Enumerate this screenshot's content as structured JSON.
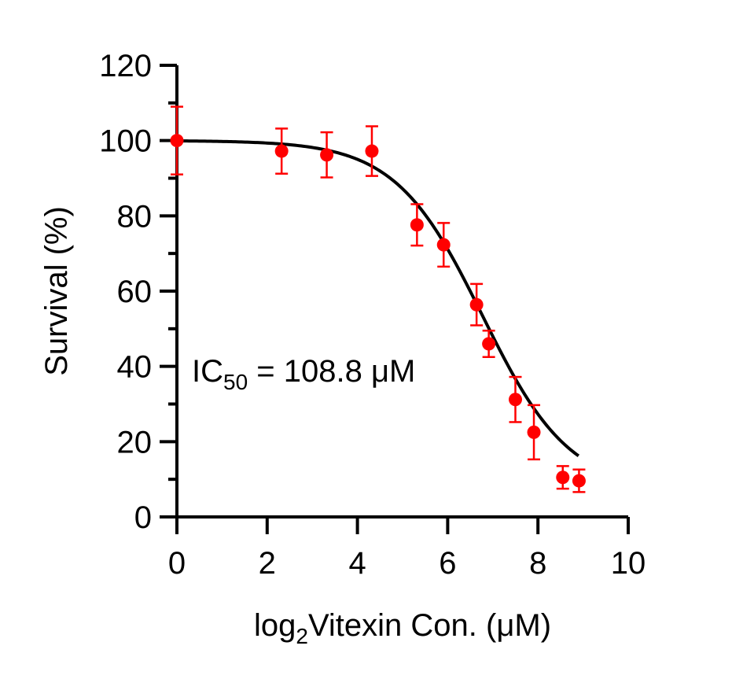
{
  "chart_data": {
    "type": "scatter",
    "title": "",
    "xlabel": {
      "prefix": "log",
      "subscript": "2",
      "suffix": "Vitexin Con. (μM)"
    },
    "ylabel": "Survival (%)",
    "xlim": [
      0,
      10
    ],
    "ylim": [
      0,
      120
    ],
    "x_ticks": [
      "0",
      "2",
      "4",
      "6",
      "8",
      "10"
    ],
    "y_ticks": [
      "0",
      "20",
      "40",
      "60",
      "80",
      "100",
      "120"
    ],
    "grid": false,
    "annotation": {
      "prefix": "IC",
      "subscript": "50",
      "suffix": " = 108.8 μM"
    },
    "colors": {
      "points": "#ff0000",
      "fit": "#000000",
      "axes": "#000000"
    },
    "series": [
      {
        "points": [
          {
            "x": 0.0,
            "y": 100.0,
            "err": 9.0
          },
          {
            "x": 2.32,
            "y": 97.2,
            "err": 6.0
          },
          {
            "x": 3.32,
            "y": 96.2,
            "err": 6.0
          },
          {
            "x": 4.32,
            "y": 97.2,
            "err": 6.6
          },
          {
            "x": 5.32,
            "y": 77.6,
            "err": 5.5
          },
          {
            "x": 5.91,
            "y": 72.3,
            "err": 5.8
          },
          {
            "x": 6.64,
            "y": 56.4,
            "err": 5.5
          },
          {
            "x": 6.91,
            "y": 46.0,
            "err": 3.5
          },
          {
            "x": 7.5,
            "y": 31.2,
            "err": 6.0
          },
          {
            "x": 7.91,
            "y": 22.5,
            "err": 7.2
          },
          {
            "x": 8.55,
            "y": 10.5,
            "err": 3.0
          },
          {
            "x": 8.91,
            "y": 9.6,
            "err": 3.0
          }
        ]
      }
    ],
    "fit": {
      "top": 100,
      "bottom": 7,
      "log2_ic50": 6.77,
      "hill": 0.45,
      "x_range": [
        0,
        8.9
      ]
    }
  }
}
